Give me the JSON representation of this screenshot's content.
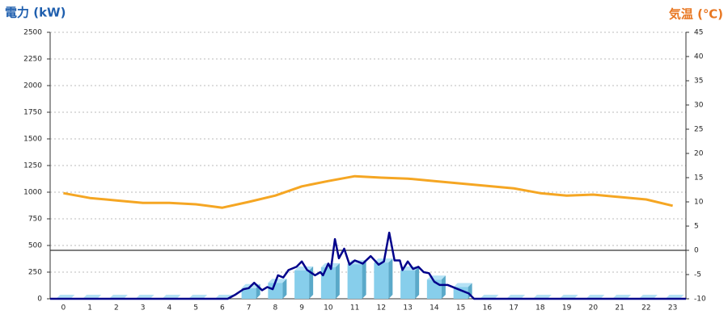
{
  "chart_data": {
    "type": "combo",
    "y_label": "電力 (kW)",
    "y2_label": "気温 (℃)",
    "categories": [
      "0",
      "1",
      "2",
      "3",
      "4",
      "5",
      "6",
      "7",
      "8",
      "9",
      "10",
      "11",
      "12",
      "13",
      "14",
      "15",
      "16",
      "17",
      "18",
      "19",
      "20",
      "21",
      "22",
      "23"
    ],
    "ylim": [
      0,
      2500
    ],
    "yticks": [
      0,
      250,
      500,
      750,
      1000,
      1250,
      1500,
      1750,
      2000,
      2250,
      2500
    ],
    "y2lim": [
      -10,
      45
    ],
    "y2ticks": [
      -10,
      -5,
      0,
      5,
      10,
      15,
      20,
      25,
      30,
      35,
      40,
      45
    ],
    "grid": true,
    "series": [
      {
        "kind": "bar",
        "color": "#87ceeb",
        "values": [
          0,
          0,
          0,
          0,
          0,
          0,
          0,
          100,
          150,
          265,
          295,
          325,
          340,
          265,
          180,
          110,
          0,
          0,
          0,
          0,
          0,
          0,
          0,
          0
        ]
      },
      {
        "kind": "line",
        "color": "#00008b",
        "x": [
          -0.5,
          6.2,
          6.5,
          6.8,
          7.0,
          7.2,
          7.5,
          7.7,
          7.9,
          8.1,
          8.3,
          8.5,
          8.8,
          9.0,
          9.2,
          9.5,
          9.7,
          9.8,
          10.0,
          10.1,
          10.25,
          10.4,
          10.6,
          10.8,
          11.0,
          11.3,
          11.6,
          11.9,
          12.1,
          12.3,
          12.5,
          12.7,
          12.8,
          13.0,
          13.2,
          13.4,
          13.6,
          13.8,
          14.0,
          14.2,
          14.5,
          14.8,
          15.0,
          15.3,
          15.5,
          23.5
        ],
        "values": [
          0,
          0,
          40,
          90,
          100,
          150,
          80,
          110,
          90,
          220,
          200,
          270,
          300,
          350,
          270,
          220,
          250,
          220,
          330,
          280,
          560,
          380,
          470,
          320,
          360,
          330,
          400,
          320,
          350,
          620,
          360,
          360,
          270,
          350,
          280,
          300,
          250,
          240,
          160,
          130,
          130,
          100,
          80,
          50,
          0,
          0
        ]
      },
      {
        "kind": "line",
        "color": "#f5a623",
        "axis": "y2",
        "values": [
          11.8,
          10.8,
          10.3,
          9.8,
          9.8,
          9.5,
          8.8,
          10,
          11.3,
          13.2,
          14.3,
          15.3,
          15,
          14.8,
          14.3,
          13.8,
          13.3,
          12.8,
          11.8,
          11.3,
          11.5,
          11,
          10.5,
          9.2
        ]
      }
    ]
  }
}
